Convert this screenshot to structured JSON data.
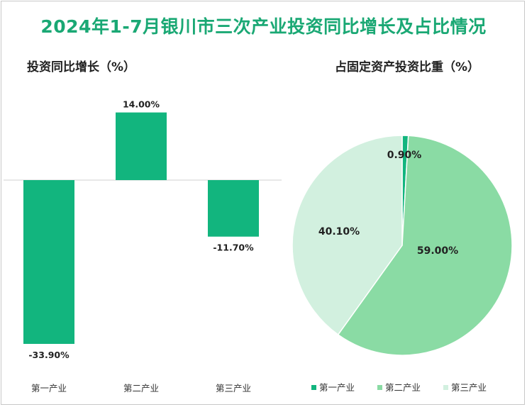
{
  "title": "2024年1-7月银川市三次产业投资同比增长及占比情况",
  "chart_data": [
    {
      "type": "bar",
      "title": "投资同比增长（%）",
      "categories": [
        "第一产业",
        "第二产业",
        "第三产业"
      ],
      "values": [
        -33.9,
        14.0,
        -11.7
      ],
      "labels": [
        "-33.90%",
        "14.00%",
        "-11.70%"
      ],
      "color": "#12b57e",
      "ylim": [
        -40,
        20
      ]
    },
    {
      "type": "pie",
      "title": "占固定资产投资比重（%）",
      "categories": [
        "第一产业",
        "第二产业",
        "第三产业"
      ],
      "values": [
        0.9,
        59.0,
        40.1
      ],
      "labels": [
        "0.90%",
        "59.00%",
        "40.10%"
      ],
      "colors": [
        "#12b57e",
        "#8adba4",
        "#d2f0df"
      ],
      "legend": [
        "第一产业",
        "第二产业",
        "第三产业"
      ]
    }
  ]
}
